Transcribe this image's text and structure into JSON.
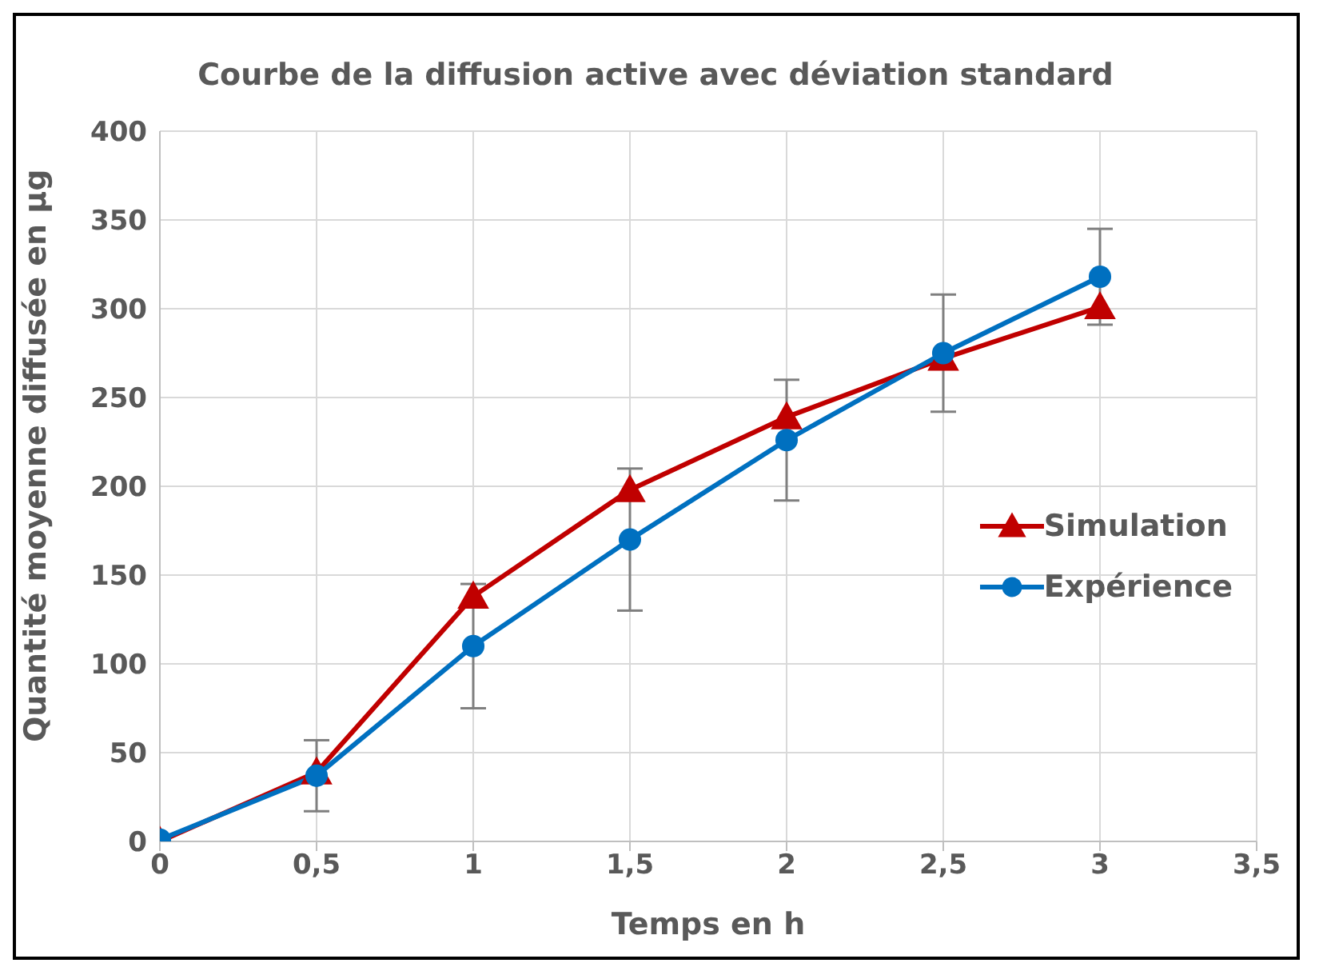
{
  "chart_data": {
    "type": "line",
    "title": "Courbe de la diffusion active avec déviation standard",
    "xlabel": "Temps en h",
    "ylabel": "Quantité moyenne diffusée en µg",
    "x": [
      0,
      0.5,
      1,
      1.5,
      2,
      2.5,
      3
    ],
    "series": [
      {
        "name": "Simulation",
        "color": "#c00000",
        "marker": "triangle",
        "values": [
          0,
          39,
          138,
          198,
          239,
          272,
          301
        ]
      },
      {
        "name": "Expérience",
        "color": "#0070c0",
        "marker": "circle",
        "values": [
          1,
          37,
          110,
          170,
          226,
          275,
          318
        ],
        "errors": [
          null,
          20,
          35,
          40,
          34,
          33,
          27
        ]
      }
    ],
    "xlim": [
      0,
      3.5
    ],
    "xticks": [
      {
        "value": 0,
        "label": "0"
      },
      {
        "value": 0.5,
        "label": "0,5"
      },
      {
        "value": 1,
        "label": "1"
      },
      {
        "value": 1.5,
        "label": "1,5"
      },
      {
        "value": 2,
        "label": "2"
      },
      {
        "value": 2.5,
        "label": "2,5"
      },
      {
        "value": 3,
        "label": "3"
      },
      {
        "value": 3.5,
        "label": "3,5"
      }
    ],
    "ylim": [
      0,
      400
    ],
    "yticks": [
      0,
      50,
      100,
      150,
      200,
      250,
      300,
      350,
      400
    ],
    "grid": true,
    "legend": "right",
    "line_style": "solid"
  }
}
